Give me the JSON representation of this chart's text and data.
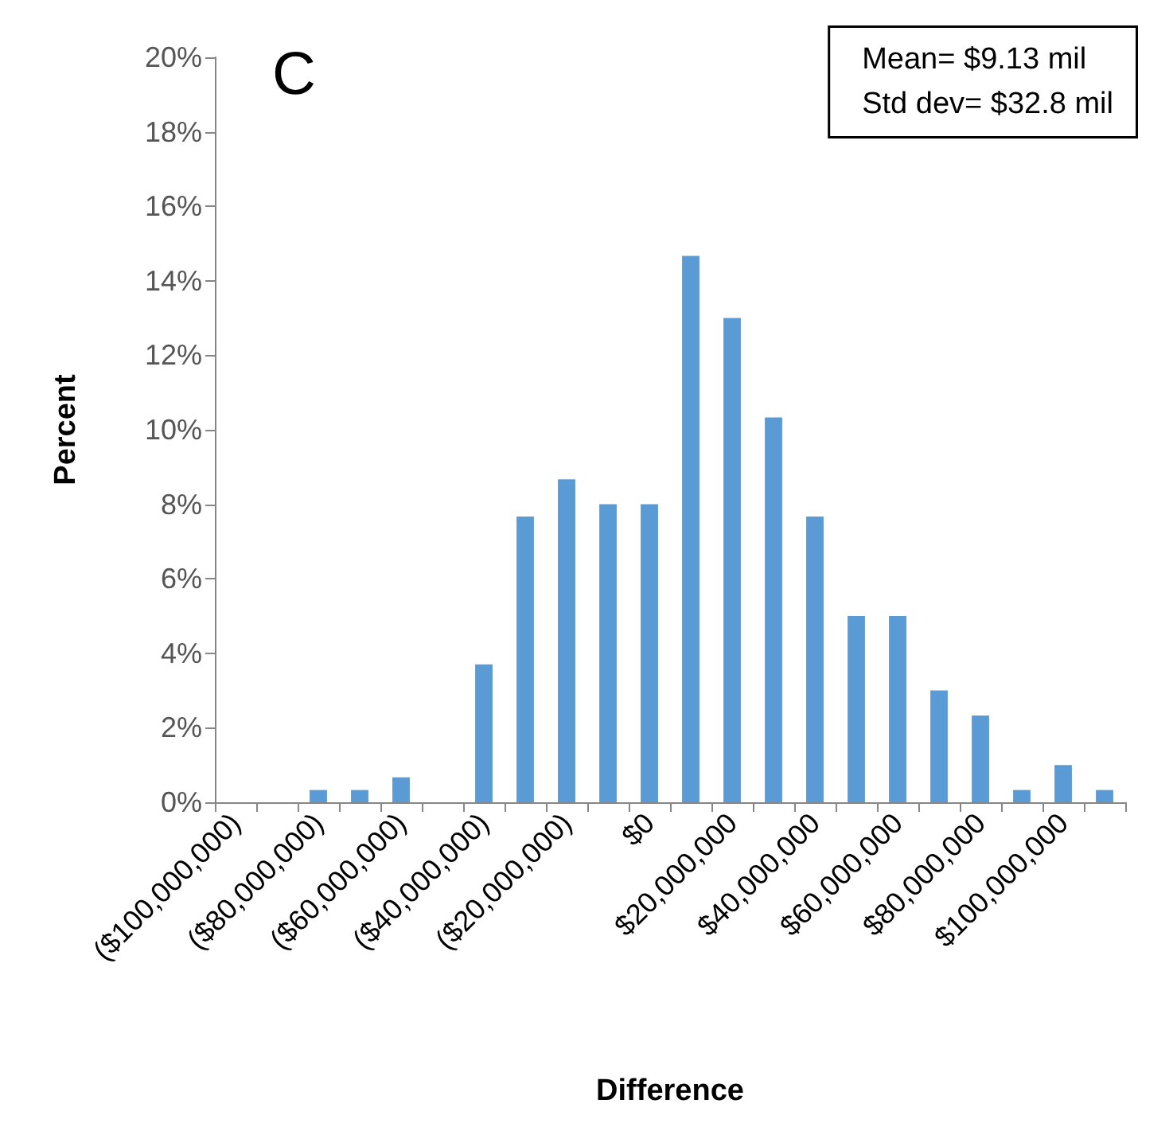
{
  "chart_data": {
    "type": "bar",
    "xlabel": "Difference",
    "ylabel": "Percent",
    "annotations": [
      "C",
      "Mean= $9.13 mil\nStd dev= $32.8 mil"
    ],
    "categories": [
      "($100,000,000)",
      null,
      "($80,000,000)",
      null,
      "($60,000,000)",
      null,
      "($40,000,000)",
      null,
      "($20,000,000)",
      null,
      "$0",
      null,
      "$20,000,000",
      null,
      "$40,000,000",
      null,
      "$60,000,000",
      null,
      "$80,000,000",
      null,
      "$100,000,000",
      null
    ],
    "values": [
      0,
      0,
      0.33,
      0.33,
      0.67,
      0,
      3.7,
      7.67,
      8.67,
      8,
      8,
      14.67,
      13,
      10.33,
      7.67,
      5,
      5,
      3,
      2.33,
      0.33,
      1,
      0.33
    ],
    "color": "#5b9bd5",
    "ylim": [
      0,
      20
    ],
    "yticks": [
      {
        "value": 0,
        "label": "0%"
      },
      {
        "value": 2,
        "label": "2%"
      },
      {
        "value": 4,
        "label": "4%"
      },
      {
        "value": 6,
        "label": "6%"
      },
      {
        "value": 8,
        "label": "8%"
      },
      {
        "value": 10,
        "label": "10%"
      },
      {
        "value": 12,
        "label": "12%"
      },
      {
        "value": 14,
        "label": "14%"
      },
      {
        "value": 16,
        "label": "16%"
      },
      {
        "value": 18,
        "label": "18%"
      },
      {
        "value": 20,
        "label": "20%"
      }
    ],
    "grid": false
  }
}
